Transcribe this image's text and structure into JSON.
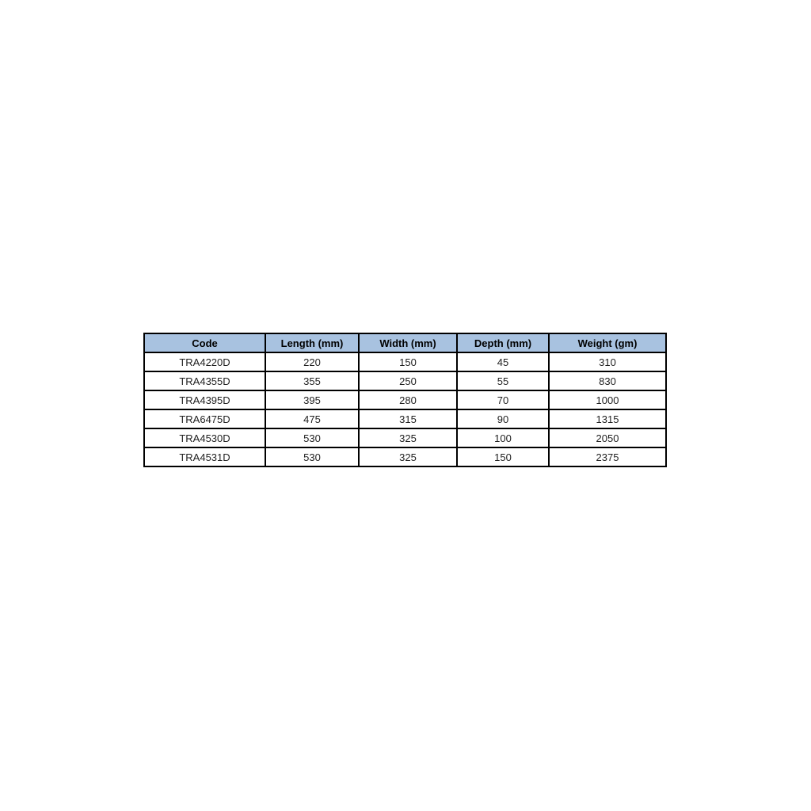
{
  "colors": {
    "header_bg": "#a8c2e0",
    "border": "#000000",
    "text": "#1f1f1f",
    "page_bg": "#ffffff"
  },
  "table": {
    "columns": [
      "Code",
      "Length (mm)",
      "Width (mm)",
      "Depth (mm)",
      "Weight (gm)"
    ],
    "rows": [
      [
        "TRA4220D",
        "220",
        "150",
        "45",
        "310"
      ],
      [
        "TRA4355D",
        "355",
        "250",
        "55",
        "830"
      ],
      [
        "TRA4395D",
        "395",
        "280",
        "70",
        "1000"
      ],
      [
        "TRA6475D",
        "475",
        "315",
        "90",
        "1315"
      ],
      [
        "TRA4530D",
        "530",
        "325",
        "100",
        "2050"
      ],
      [
        "TRA4531D",
        "530",
        "325",
        "150",
        "2375"
      ]
    ]
  }
}
